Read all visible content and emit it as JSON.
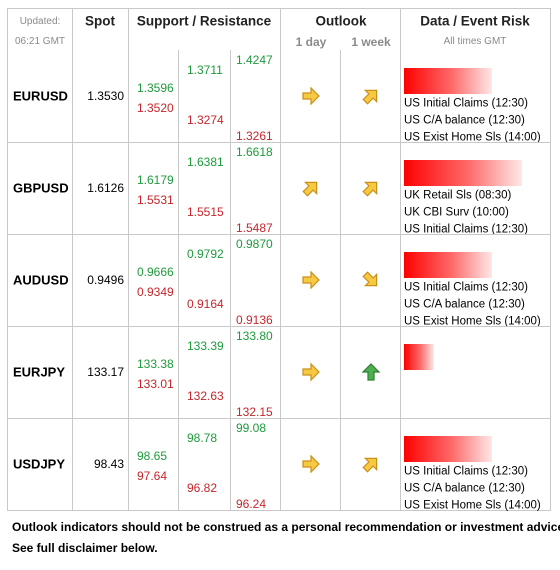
{
  "header": {
    "updated_label": "Updated:",
    "updated_time": "06:21 GMT",
    "spot": "Spot",
    "support_resistance": "Support / Resistance",
    "outlook": "Outlook",
    "outlook_1day": "1 day",
    "outlook_1week": "1 week",
    "data_event_risk": "Data / Event Risk",
    "all_times": "All times GMT"
  },
  "rows": [
    {
      "pair": "EURUSD",
      "spot": "1.3530",
      "resistance": [
        "1.3596",
        "1.3711",
        "1.4247"
      ],
      "support": [
        "1.3520",
        "1.3274",
        "1.3261"
      ],
      "events": [
        "US Initial Claims (12:30)",
        "US C/A balance (12:30)",
        "US Exist Home Sls (14:00)"
      ]
    },
    {
      "pair": "GBPUSD",
      "spot": "1.6126",
      "resistance": [
        "1.6179",
        "1.6381",
        "1.6618"
      ],
      "support": [
        "1.5531",
        "1.5515",
        "1.5487"
      ],
      "events": [
        "UK Retail Sls (08:30)",
        "UK CBI Surv (10:00)",
        "US Initial Claims (12:30)"
      ]
    },
    {
      "pair": "AUDUSD",
      "spot": "0.9496",
      "resistance": [
        "0.9666",
        "0.9792",
        "0.9870"
      ],
      "support": [
        "0.9349",
        "0.9164",
        "0.9136"
      ],
      "events": [
        "US Initial Claims (12:30)",
        "US C/A balance (12:30)",
        "US Exist Home Sls (14:00)"
      ]
    },
    {
      "pair": "EURJPY",
      "spot": "133.17",
      "resistance": [
        "133.38",
        "133.39",
        "133.80"
      ],
      "support": [
        "133.01",
        "132.63",
        "132.15"
      ],
      "events": []
    },
    {
      "pair": "USDJPY",
      "spot": "98.43",
      "resistance": [
        "98.65",
        "98.78",
        "99.08"
      ],
      "support": [
        "97.64",
        "96.82",
        "96.24"
      ],
      "events": [
        "US Initial Claims (12:30)",
        "US C/A balance (12:30)",
        "US Exist Home Sls (14:00)"
      ]
    }
  ],
  "footer": [
    "Outlook indicators should not be construed as a personal recommendation or investment advice.",
    "See full disclaimer below."
  ]
}
